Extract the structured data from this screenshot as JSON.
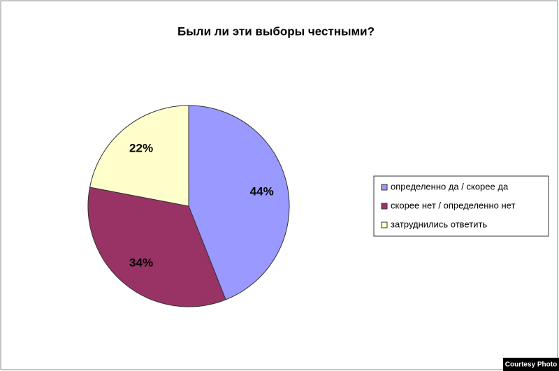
{
  "chart_data": {
    "type": "pie",
    "title": "Были ли эти выборы честными?",
    "categories": [
      "определенно да / скорее да",
      "скорее нет / определенно нет",
      "затруднились ответить"
    ],
    "values": [
      44,
      34,
      22
    ],
    "value_labels": [
      "44%",
      "34%",
      "22%"
    ],
    "colors": [
      "#9999ff",
      "#993366",
      "#ffffcc"
    ],
    "legend": "right"
  },
  "credit": "Courtesy Photo"
}
